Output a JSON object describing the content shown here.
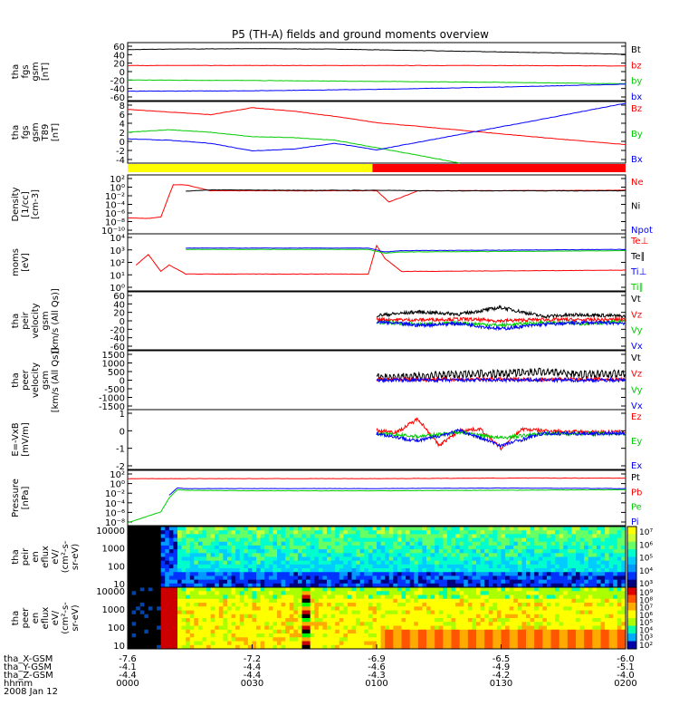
{
  "chart_data": {
    "type": "line",
    "title": "P5 (TH-A) fields and ground moments overview",
    "panels": [
      {
        "ylabel": [
          "tha",
          "fgs",
          "gsm",
          "[nT]"
        ],
        "ylim": [
          -62,
          62
        ],
        "yticks": [
          "60",
          "40",
          "20",
          "0",
          "-20",
          "-40",
          "-60"
        ],
        "legend": [
          {
            "label": "Bt",
            "color": "#000000"
          },
          {
            "label": "bz",
            "color": "#ff0000"
          },
          {
            "label": "by",
            "color": "#00cc00"
          },
          {
            "label": "bx",
            "color": "#0000ff"
          }
        ],
        "series": [
          {
            "name": "Bt",
            "color": "#000000",
            "x": [
              0,
              10,
              30,
              50,
              70,
              90,
              110,
              120
            ],
            "y": [
              47,
              48,
              49,
              48,
              45,
              42,
              39,
              37
            ]
          },
          {
            "name": "bz",
            "color": "#ff0000",
            "x": [
              0,
              30,
              60,
              90,
              120
            ],
            "y": [
              13,
              13,
              13,
              13,
              12
            ]
          },
          {
            "name": "by",
            "color": "#00cc00",
            "x": [
              0,
              30,
              60,
              90,
              120
            ],
            "y": [
              -18,
              -19,
              -21,
              -23,
              -26
            ]
          },
          {
            "name": "bx",
            "color": "#0000ff",
            "x": [
              0,
              30,
              60,
              90,
              120
            ],
            "y": [
              -42,
              -41,
              -38,
              -33,
              -27
            ]
          }
        ]
      },
      {
        "ylabel": [
          "tha",
          "fgs",
          "gsm",
          "T89",
          "[nT]"
        ],
        "ylim": [
          -5,
          9
        ],
        "yticks": [
          "8",
          "6",
          "4",
          "2",
          "0",
          "-2",
          "-4"
        ],
        "legend": [
          {
            "label": "Bz",
            "color": "#ff0000"
          },
          {
            "label": "By",
            "color": "#00cc00"
          },
          {
            "label": "Bx",
            "color": "#0000ff"
          }
        ],
        "series": [
          {
            "name": "Bz",
            "color": "#ff0000",
            "x": [
              0,
              10,
              20,
              30,
              40,
              50,
              60,
              80,
              100,
              120
            ],
            "y": [
              7.2,
              6.6,
              6.0,
              7.6,
              6.8,
              5.6,
              4.2,
              2.5,
              0.8,
              -0.8
            ]
          },
          {
            "name": "By",
            "color": "#00cc00",
            "x": [
              0,
              10,
              20,
              30,
              40,
              50,
              60,
              70,
              80
            ],
            "y": [
              2.0,
              2.6,
              2.0,
              1.0,
              0.8,
              0.2,
              -1.5,
              -3.2,
              -5.0
            ]
          },
          {
            "name": "Bx",
            "color": "#0000ff",
            "x": [
              0,
              10,
              20,
              30,
              40,
              50,
              60,
              80,
              100,
              120
            ],
            "y": [
              0.5,
              0.2,
              -0.5,
              -2.2,
              -1.8,
              -0.5,
              -2.0,
              1.5,
              5.0,
              8.6
            ]
          }
        ]
      },
      {
        "ylabel": [
          "Density",
          "[1/cc]",
          "[cm-3]"
        ],
        "yscale": "log",
        "ylim": [
          -10,
          3
        ],
        "yticks": [
          "10²",
          "10⁰",
          "10⁻²",
          "10⁻⁴",
          "10⁻⁶",
          "10⁻⁸",
          "10⁻¹⁰"
        ],
        "legend": [
          {
            "label": "Ne",
            "color": "#ff0000"
          },
          {
            "label": "Ni",
            "color": "#000000"
          },
          {
            "label": "Npot",
            "color": "#0000ff"
          }
        ],
        "series": [
          {
            "name": "Ne",
            "color": "#ff0000",
            "x": [
              0,
              5,
              8,
              10,
              11,
              14,
              20,
              40,
              60,
              63,
              70,
              120
            ],
            "y": [
              -6.5,
              -6.6,
              -6.3,
              -1.5,
              0.8,
              0.8,
              -0.5,
              -0.5,
              -0.5,
              -3.0,
              -0.5,
              -0.4
            ]
          },
          {
            "name": "Ni",
            "color": "#000000",
            "x": [
              14,
              20,
              40,
              62,
              70,
              120
            ],
            "y": [
              -0.6,
              -0.3,
              -0.4,
              -0.4,
              -0.5,
              -0.5
            ]
          }
        ]
      },
      {
        "ylabel": [
          "moms",
          "[eV]"
        ],
        "yscale": "log",
        "ylim": [
          0,
          4.4
        ],
        "yticks": [
          "10⁴",
          "10³",
          "10²",
          "10¹",
          "10⁰"
        ],
        "legend": [
          {
            "label": "Te⊥",
            "color": "#ff0000"
          },
          {
            "label": "Te∥",
            "color": "#000000"
          },
          {
            "label": "Ti⊥",
            "color": "#0000ff"
          },
          {
            "label": "Ti∥",
            "color": "#00cc00"
          }
        ],
        "series": [
          {
            "name": "Te⊥",
            "color": "#ff0000",
            "x": [
              2,
              5,
              8,
              10,
              14,
              40,
              58,
              60,
              62,
              66,
              120
            ],
            "y": [
              2.0,
              2.8,
              1.5,
              2.0,
              1.3,
              1.3,
              1.3,
              3.5,
              2.5,
              1.5,
              1.6
            ]
          },
          {
            "name": "Ti⊥",
            "color": "#0000ff",
            "x": [
              14,
              40,
              58,
              62,
              66,
              120
            ],
            "y": [
              3.3,
              3.3,
              3.3,
              3.0,
              3.1,
              3.2
            ]
          },
          {
            "name": "Ti∥",
            "color": "#00cc00",
            "x": [
              14,
              40,
              58,
              62,
              66,
              120
            ],
            "y": [
              3.2,
              3.2,
              3.2,
              2.9,
              3.0,
              3.1
            ]
          }
        ]
      },
      {
        "ylabel": [
          "tha",
          "peir",
          "velocity",
          "gsm",
          "[km/s (All Qs)]"
        ],
        "ylim": [
          -65,
          65
        ],
        "yticks": [
          "60",
          "40",
          "20",
          "0",
          "-20",
          "-40",
          "-60"
        ],
        "legend": [
          {
            "label": "Vt",
            "color": "#000000"
          },
          {
            "label": "Vz",
            "color": "#ff0000"
          },
          {
            "label": "Vy",
            "color": "#00cc00"
          },
          {
            "label": "Vx",
            "color": "#0000ff"
          }
        ],
        "series": [
          {
            "name": "Vt",
            "color": "#000000",
            "x": [
              60,
              70,
              80,
              90,
              100,
              110,
              120
            ],
            "y": [
              12,
              20,
              15,
              30,
              10,
              14,
              10
            ]
          },
          {
            "name": "Vz",
            "color": "#ff0000",
            "x": [
              60,
              70,
              80,
              90,
              100,
              110,
              120
            ],
            "y": [
              3,
              2,
              4,
              0,
              3,
              2,
              3
            ]
          },
          {
            "name": "Vy",
            "color": "#00cc00",
            "x": [
              60,
              70,
              80,
              90,
              100,
              110,
              120
            ],
            "y": [
              -3,
              -8,
              -5,
              -10,
              -4,
              -6,
              -2
            ]
          },
          {
            "name": "Vx",
            "color": "#0000ff",
            "x": [
              60,
              70,
              80,
              90,
              100,
              110,
              120
            ],
            "y": [
              -2,
              -10,
              -6,
              -18,
              -8,
              -4,
              -5
            ]
          }
        ]
      },
      {
        "ylabel": [
          "tha",
          "peer",
          "velocity",
          "gsm",
          "[km/s (All Qs)]"
        ],
        "ylim": [
          -1700,
          1600
        ],
        "yticks": [
          "1500",
          "1000",
          "500",
          "0",
          "-500",
          "-1000",
          "-1500"
        ],
        "legend": [
          {
            "label": "Vt",
            "color": "#000000"
          },
          {
            "label": "Vz",
            "color": "#ff0000"
          },
          {
            "label": "Vy",
            "color": "#00cc00"
          },
          {
            "label": "Vx",
            "color": "#0000ff"
          }
        ],
        "series": [
          {
            "name": "Vt",
            "color": "#000000",
            "x": [
              60,
              70,
              80,
              90,
              100,
              110,
              120
            ],
            "y": [
              50,
              150,
              250,
              300,
              400,
              250,
              300
            ]
          },
          {
            "name": "Vz",
            "color": "#ff0000",
            "x": [
              60,
              120
            ],
            "y": [
              0,
              0
            ]
          },
          {
            "name": "Vx",
            "color": "#0000ff",
            "x": [
              60,
              120
            ],
            "y": [
              -50,
              -50
            ]
          }
        ]
      },
      {
        "ylabel": [
          "E=-VxB",
          "[mV/m]"
        ],
        "ylim": [
          -2.4,
          1.6
        ],
        "yticks": [
          "1",
          "0",
          "-1",
          "-2"
        ],
        "legend": [
          {
            "label": "Ez",
            "color": "#ff0000"
          },
          {
            "label": "Ey",
            "color": "#00cc00"
          },
          {
            "label": "Ex",
            "color": "#0000ff"
          }
        ],
        "series": [
          {
            "name": "Ez",
            "color": "#ff0000",
            "x": [
              60,
              65,
              70,
              75,
              80,
              85,
              90,
              95,
              100,
              110,
              120
            ],
            "y": [
              0.2,
              0.1,
              1.0,
              -0.8,
              0.2,
              0.3,
              -1.0,
              0.3,
              0.2,
              0.1,
              0.1
            ]
          },
          {
            "name": "Ey",
            "color": "#00cc00",
            "x": [
              60,
              70,
              80,
              90,
              100,
              120
            ],
            "y": [
              0,
              -0.2,
              0.1,
              -0.3,
              0.0,
              0.0
            ]
          },
          {
            "name": "Ex",
            "color": "#0000ff",
            "x": [
              60,
              70,
              80,
              90,
              100,
              120
            ],
            "y": [
              0,
              -0.5,
              0.2,
              -0.8,
              0.0,
              0.0
            ]
          }
        ]
      },
      {
        "ylabel": [
          "Pressure",
          "[nPa]"
        ],
        "yscale": "log",
        "ylim": [
          -8,
          2
        ],
        "yticks": [
          "10²",
          "10⁰",
          "10⁻²",
          "10⁻⁴",
          "10⁻⁶",
          "10⁻⁸"
        ],
        "legend": [
          {
            "label": "Pt",
            "color": "#000000"
          },
          {
            "label": "Pb",
            "color": "#ff0000"
          },
          {
            "label": "Pe",
            "color": "#00cc00"
          },
          {
            "label": "Pi",
            "color": "#0000ff"
          }
        ],
        "series": [
          {
            "name": "Pb",
            "color": "#ff0000",
            "x": [
              0,
              30,
              60,
              90,
              120
            ],
            "y": [
              0.5,
              0.5,
              0.5,
              0.6,
              0.6
            ]
          },
          {
            "name": "Pe",
            "color": "#00cc00",
            "x": [
              0,
              4,
              8,
              10,
              12,
              14,
              30,
              60,
              120
            ],
            "y": [
              -7.5,
              -6.5,
              -5.5,
              -3.0,
              -1.5,
              -1.6,
              -1.7,
              -1.7,
              -1.5
            ]
          },
          {
            "name": "Pi",
            "color": "#0000ff",
            "x": [
              10,
              12,
              14,
              30,
              60,
              90,
              120
            ],
            "y": [
              -2.5,
              -1.2,
              -1.3,
              -1.3,
              -1.3,
              -1.2,
              -1.3
            ]
          }
        ]
      },
      {
        "type": "heatmap",
        "ylabel": [
          "tha",
          "peir",
          "en",
          "eflux",
          "eV/",
          "(cm²-s-",
          "sr-eV)"
        ],
        "yticks": [
          "10000",
          "1000",
          "100",
          "10"
        ],
        "colorbar_ticks": [
          "10⁷",
          "10⁶",
          "10⁵",
          "10⁴",
          "10³"
        ]
      },
      {
        "type": "heatmap",
        "ylabel": [
          "tha",
          "peer",
          "en",
          "eflux",
          "eV/",
          "(cm²-s-",
          "sr-eV)"
        ],
        "yticks": [
          "10000",
          "1000",
          "100",
          "10"
        ],
        "colorbar_ticks": [
          "10⁹",
          "10⁸",
          "10⁷",
          "10⁶",
          "10⁵",
          "10⁴",
          "10³",
          "10²"
        ]
      }
    ],
    "mode_bar": [
      {
        "from": 0,
        "to": 59,
        "color": "#ffff00"
      },
      {
        "from": 59,
        "to": 120,
        "color": "#ff0000"
      }
    ],
    "x_axis": {
      "range_minutes": [
        0,
        120
      ],
      "tick_minutes": [
        0,
        30,
        60,
        90,
        120
      ],
      "rows": [
        {
          "label": "tha_X-GSM",
          "values": [
            "-7.6",
            "-7.2",
            "-6.9",
            "-6.5",
            "-6.0"
          ]
        },
        {
          "label": "tha_Y-GSM",
          "values": [
            "-4.1",
            "-4.4",
            "-4.6",
            "-4.9",
            "-5.1"
          ]
        },
        {
          "label": "tha_Z-GSM",
          "values": [
            "-4.4",
            "-4.4",
            "-4.3",
            "-4.2",
            "-4.0"
          ]
        },
        {
          "label": "hhmm",
          "values": [
            "0000",
            "0030",
            "0100",
            "0130",
            "0200"
          ]
        }
      ],
      "date": "2008 Jan 12"
    }
  }
}
